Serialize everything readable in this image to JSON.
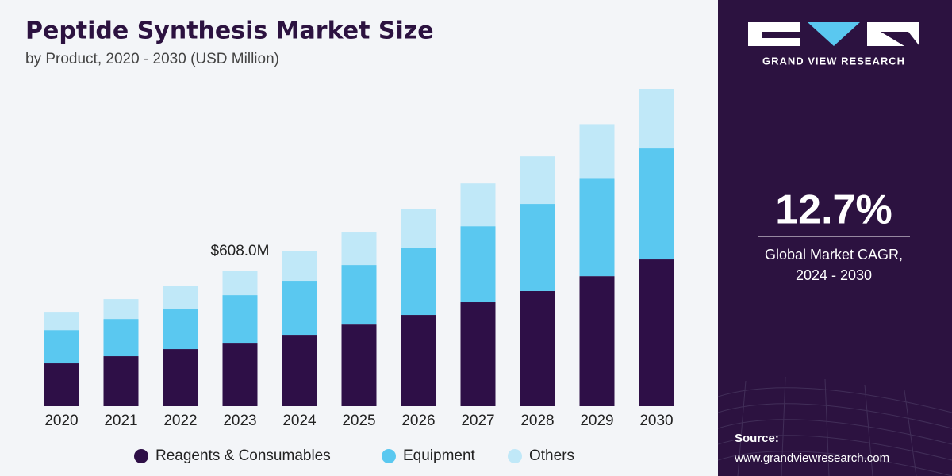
{
  "chart_data": {
    "type": "stacked-bar",
    "title": "Peptide Synthesis Market Size",
    "subtitle": "by Product, 2020 - 2030 (USD Million)",
    "categories": [
      "2020",
      "2021",
      "2022",
      "2023",
      "2024",
      "2025",
      "2026",
      "2027",
      "2028",
      "2029",
      "2030"
    ],
    "series": [
      {
        "name": "Reagents & Consumables",
        "color": "#2e0f47",
        "values": [
          192,
          224,
          256,
          284.4,
          320,
          366,
          409,
          466,
          516,
          583,
          658
        ]
      },
      {
        "name": "Equipment",
        "color": "#5ac8f0",
        "values": [
          149,
          167,
          181,
          213.4,
          242,
          267,
          302,
          341,
          391,
          437,
          498
        ]
      },
      {
        "name": "Others",
        "color": "#c0e8f8",
        "values": [
          82,
          89,
          103,
          110.2,
          132,
          146,
          174,
          192,
          213,
          245,
          267
        ]
      }
    ],
    "annotation": {
      "label": "$608.0M",
      "value": 608.0,
      "category": "2023"
    }
  },
  "panel": {
    "brand": "GRAND VIEW RESEARCH",
    "cagr": "12.7%",
    "cagr_label": [
      "Global Market CAGR,",
      "2024 - 2030"
    ],
    "source_label": "Source:",
    "source_url": "www.grandviewresearch.com"
  }
}
